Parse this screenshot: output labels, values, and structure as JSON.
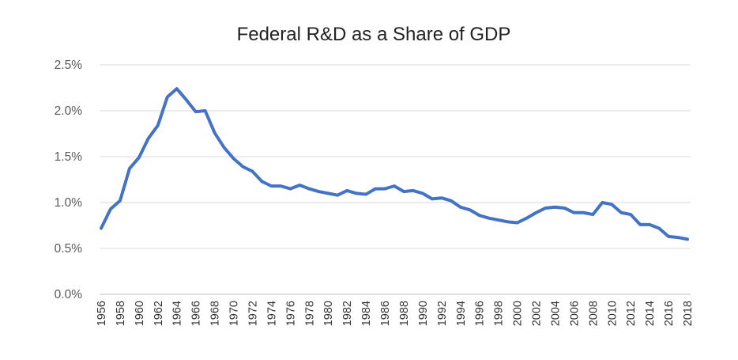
{
  "chart_data": {
    "type": "line",
    "title": "Federal R&D as a Share of GDP",
    "xlabel": "",
    "ylabel": "",
    "x": [
      1956,
      1957,
      1958,
      1959,
      1960,
      1961,
      1962,
      1963,
      1964,
      1965,
      1966,
      1967,
      1968,
      1969,
      1970,
      1971,
      1972,
      1973,
      1974,
      1975,
      1976,
      1977,
      1978,
      1979,
      1980,
      1981,
      1982,
      1983,
      1984,
      1985,
      1986,
      1987,
      1988,
      1989,
      1990,
      1991,
      1992,
      1993,
      1994,
      1995,
      1996,
      1997,
      1998,
      1999,
      2000,
      2001,
      2002,
      2003,
      2004,
      2005,
      2006,
      2007,
      2008,
      2009,
      2010,
      2011,
      2012,
      2013,
      2014,
      2015,
      2016,
      2017,
      2018
    ],
    "x_tick_labels": [
      "1956",
      "1958",
      "1960",
      "1962",
      "1964",
      "1966",
      "1968",
      "1970",
      "1972",
      "1974",
      "1976",
      "1978",
      "1980",
      "1982",
      "1984",
      "1986",
      "1988",
      "1990",
      "1992",
      "1994",
      "1996",
      "1998",
      "2000",
      "2002",
      "2004",
      "2006",
      "2008",
      "2010",
      "2012",
      "2014",
      "2016",
      "2018"
    ],
    "series": [
      {
        "name": "",
        "color": "#4472c4",
        "values": [
          0.72,
          0.93,
          1.02,
          1.37,
          1.49,
          1.7,
          1.84,
          2.15,
          2.24,
          2.12,
          1.99,
          2.0,
          1.76,
          1.6,
          1.48,
          1.39,
          1.34,
          1.23,
          1.18,
          1.18,
          1.15,
          1.19,
          1.15,
          1.12,
          1.1,
          1.08,
          1.13,
          1.1,
          1.09,
          1.15,
          1.15,
          1.18,
          1.12,
          1.13,
          1.1,
          1.04,
          1.05,
          1.02,
          0.95,
          0.92,
          0.86,
          0.83,
          0.81,
          0.79,
          0.78,
          0.83,
          0.89,
          0.94,
          0.95,
          0.94,
          0.89,
          0.89,
          0.87,
          1.0,
          0.98,
          0.89,
          0.87,
          0.76,
          0.76,
          0.72,
          0.63,
          0.62,
          0.6
        ]
      }
    ],
    "y_tick_labels": [
      "0.0%",
      "0.5%",
      "1.0%",
      "1.5%",
      "2.0%",
      "2.5%"
    ],
    "ylim": [
      0,
      2.5
    ],
    "y_unit": "%",
    "grid": true,
    "legend": "none"
  }
}
